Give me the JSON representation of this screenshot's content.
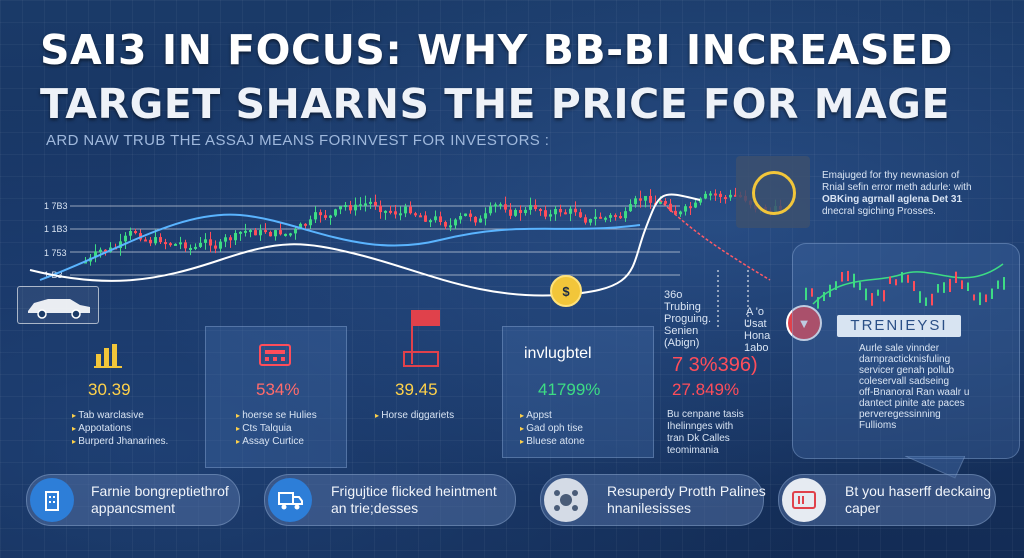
{
  "header": {
    "title_line1": "SAI3 IN FOCUS: WHY BB-BI INCREASED",
    "title_line2": "TARGET SHARNS THE PRICE FOR MAGE",
    "subtitle": "ARD NAW TRUB THE ASSAJ MEANS FORINVEST FOR INVESTORS :"
  },
  "chart": {
    "y_tick_labels": [
      "1 7B3",
      "1 1B3",
      "1 753",
      "1 B3"
    ]
  },
  "chart_callouts": {
    "left_note": [
      "36o",
      "Trubing",
      "Proguing.",
      "Senien",
      "(Abign)"
    ],
    "right_note": [
      "Usat",
      "Hona",
      "1abo"
    ],
    "arrow_label": "A 'o"
  },
  "top_right_note": {
    "lines": [
      "Emajuged for thy newnasion of",
      "Rnial sefin error meth adurle: with",
      "OBKing agrnall aglena Det 31",
      "dnecral sgiching Prosses."
    ]
  },
  "right_panel": {
    "title": "TRENIEYSI",
    "lines": [
      "Aurle sale vinnder",
      "darnpracticknisfuling",
      "servicer genah pollub",
      "coleservall sadseing",
      "off-Bnanoral Ran waalr u",
      "dantect pinite ate paces",
      "perveregessinning",
      "Fullioms"
    ]
  },
  "stat_cards": [
    {
      "value": "30.39",
      "bullets": [
        "Tab warclasive",
        "Appotations",
        "Burperd Jhanarines."
      ]
    },
    {
      "value": "534%",
      "bullets": [
        "hoerse se Hulies",
        "Cts Talquia",
        "Assay Curtice"
      ]
    },
    {
      "value": "39.45",
      "bullets": [
        "Horse diggariets"
      ]
    },
    {
      "brand": "invlugbtel",
      "value": "41799%",
      "bullets": [
        "Appst",
        "Gad oph tise",
        "Bluese atone"
      ]
    },
    {
      "value": "7 3%396)",
      "value2": "27.849%",
      "note": [
        "Bu cenpane tasis",
        "Ihelinnges with",
        "tran Dk Calles",
        "teomimania"
      ]
    }
  ],
  "pills": [
    {
      "icon": "building-icon",
      "text": [
        "Farnie bongreptiethrof",
        "appancsment"
      ]
    },
    {
      "icon": "truck-icon",
      "text": [
        "Frigujtice flicked heintment",
        "an  trie;desses"
      ]
    },
    {
      "icon": "network-icon",
      "text": [
        "Resuperdy Protth Palines",
        "hnanilesisses"
      ]
    },
    {
      "icon": "ticket-icon",
      "text": [
        "Bt you haserff deckaing",
        "caper"
      ]
    }
  ],
  "colors": {
    "accent": "#ffd24a",
    "positive": "#3ddc84",
    "negative": "#ff4d5a",
    "background": "#16345f"
  }
}
